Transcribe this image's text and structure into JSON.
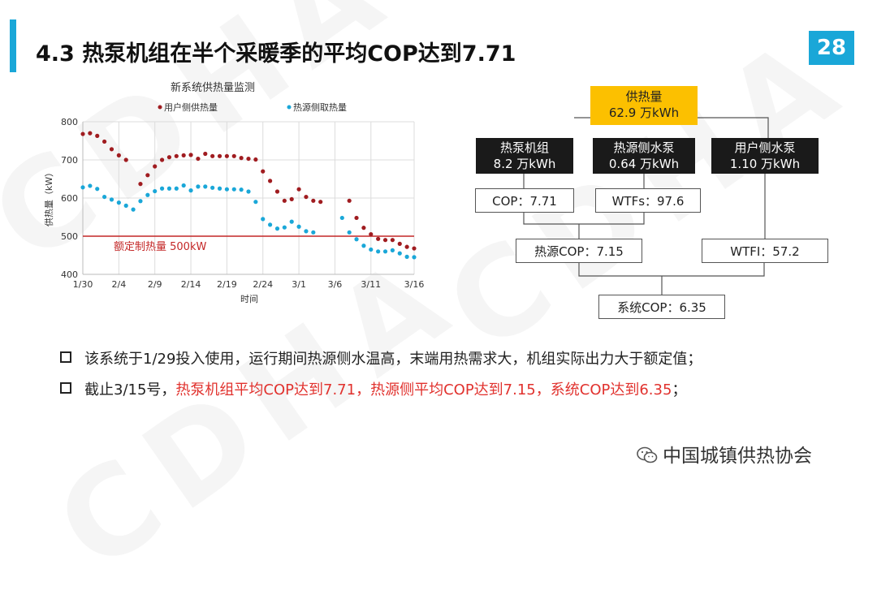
{
  "slide": {
    "title": "4.3 热泵机组在半个采暖季的平均COP达到7.71",
    "page_number": "28",
    "watermark": "CDHA"
  },
  "chart_data": {
    "type": "scatter",
    "title": "新系统供热量监测",
    "xlabel": "时间",
    "ylabel": "供热量（kW）",
    "ylim": [
      400,
      800
    ],
    "yticks": [
      400,
      500,
      600,
      700,
      800
    ],
    "xticks": [
      "1/30",
      "2/4",
      "2/9",
      "2/14",
      "2/19",
      "2/24",
      "3/1",
      "3/6",
      "3/11",
      "3/16"
    ],
    "x_start": "1/30",
    "x_end": "3/16",
    "grid": true,
    "legend_position": "top",
    "series": [
      {
        "name": "用户侧供热量",
        "color": "#a01c20",
        "points": [
          [
            0,
            768
          ],
          [
            1,
            770
          ],
          [
            2,
            763
          ],
          [
            3,
            748
          ],
          [
            4,
            728
          ],
          [
            5,
            712
          ],
          [
            6,
            700
          ],
          [
            8,
            637
          ],
          [
            9,
            660
          ],
          [
            10,
            683
          ],
          [
            11,
            700
          ],
          [
            12,
            707
          ],
          [
            13,
            710
          ],
          [
            14,
            712
          ],
          [
            15,
            713
          ],
          [
            16,
            703
          ],
          [
            17,
            716
          ],
          [
            18,
            710
          ],
          [
            19,
            710
          ],
          [
            20,
            710
          ],
          [
            21,
            710
          ],
          [
            22,
            705
          ],
          [
            23,
            703
          ],
          [
            24,
            701
          ],
          [
            25,
            670
          ],
          [
            26,
            645
          ],
          [
            27,
            617
          ],
          [
            28,
            593
          ],
          [
            29,
            597
          ],
          [
            30,
            623
          ],
          [
            31,
            603
          ],
          [
            32,
            593
          ],
          [
            33,
            590
          ],
          [
            37,
            593
          ],
          [
            38,
            548
          ],
          [
            39,
            522
          ],
          [
            40,
            505
          ],
          [
            41,
            493
          ],
          [
            42,
            490
          ],
          [
            43,
            490
          ],
          [
            44,
            480
          ],
          [
            45,
            472
          ],
          [
            46,
            468
          ]
        ]
      },
      {
        "name": "热源侧取热量",
        "color": "#1aa7d8",
        "points": [
          [
            0,
            628
          ],
          [
            1,
            632
          ],
          [
            2,
            624
          ],
          [
            3,
            603
          ],
          [
            4,
            596
          ],
          [
            5,
            588
          ],
          [
            6,
            580
          ],
          [
            7,
            570
          ],
          [
            8,
            592
          ],
          [
            9,
            608
          ],
          [
            10,
            618
          ],
          [
            11,
            625
          ],
          [
            12,
            625
          ],
          [
            13,
            625
          ],
          [
            14,
            633
          ],
          [
            15,
            620
          ],
          [
            16,
            630
          ],
          [
            17,
            630
          ],
          [
            18,
            627
          ],
          [
            19,
            625
          ],
          [
            20,
            623
          ],
          [
            21,
            623
          ],
          [
            22,
            622
          ],
          [
            23,
            617
          ],
          [
            24,
            590
          ],
          [
            25,
            545
          ],
          [
            26,
            530
          ],
          [
            27,
            520
          ],
          [
            28,
            523
          ],
          [
            29,
            538
          ],
          [
            30,
            525
          ],
          [
            31,
            513
          ],
          [
            32,
            510
          ],
          [
            36,
            548
          ],
          [
            37,
            510
          ],
          [
            38,
            492
          ],
          [
            39,
            475
          ],
          [
            40,
            465
          ],
          [
            41,
            460
          ],
          [
            42,
            460
          ],
          [
            43,
            463
          ],
          [
            44,
            455
          ],
          [
            45,
            446
          ],
          [
            46,
            445
          ]
        ]
      }
    ],
    "reference_line": {
      "value": 500,
      "label": "额定制热量 500kW",
      "color": "#c42727"
    }
  },
  "diagram": {
    "total": {
      "label": "供热量",
      "value": "62.9 万kWh"
    },
    "heat_pump": {
      "label": "热泵机组",
      "value": "8.2 万kWh"
    },
    "source_pump": {
      "label": "热源侧水泵",
      "value": "0.64 万kWh"
    },
    "user_pump": {
      "label": "用户侧水泵",
      "value": "1.10 万kWh"
    },
    "cop": "COP：7.71",
    "wtfs": "WTFs：97.6",
    "source_cop": "热源COP：7.15",
    "wtfi": "WTFI：57.2",
    "system_cop": "系统COP：6.35"
  },
  "bullets": [
    {
      "text": "该系统于1/29投入使用，运行期间热源侧水温高，末端用热需求大，机组实际出力大于额定值；"
    },
    {
      "prefix": "截止3/15号，",
      "highlight": "热泵机组平均COP达到7.71，热源侧平均COP达到7.15，系统COP达到6.35",
      "suffix": "；"
    }
  ],
  "footer": {
    "organization": "中国城镇供热协会"
  }
}
